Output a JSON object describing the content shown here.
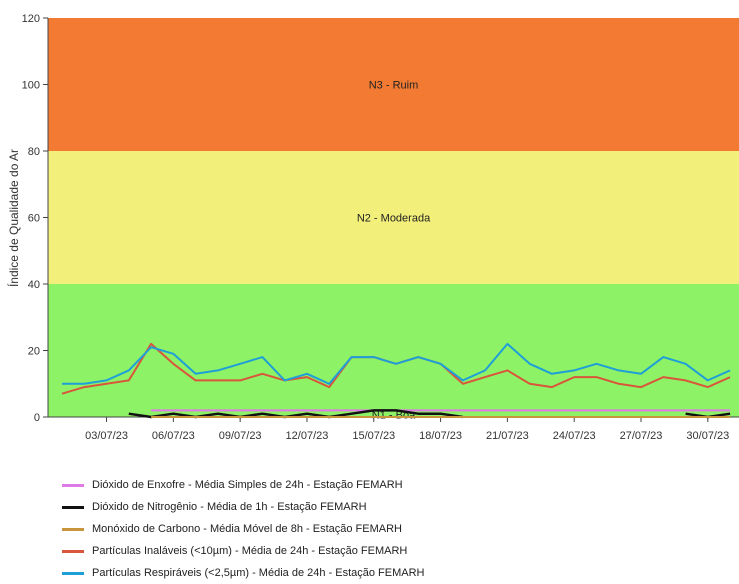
{
  "chart_data": {
    "type": "line",
    "ylabel": "Índice de Qualidade do Ar",
    "ylim": [
      0,
      120
    ],
    "yticks": [
      0,
      20,
      40,
      60,
      80,
      100,
      120
    ],
    "x": [
      "01/07/23",
      "02/07/23",
      "03/07/23",
      "04/07/23",
      "05/07/23",
      "06/07/23",
      "07/07/23",
      "08/07/23",
      "09/07/23",
      "10/07/23",
      "11/07/23",
      "12/07/23",
      "13/07/23",
      "14/07/23",
      "15/07/23",
      "16/07/23",
      "17/07/23",
      "18/07/23",
      "19/07/23",
      "20/07/23",
      "21/07/23",
      "22/07/23",
      "23/07/23",
      "24/07/23",
      "25/07/23",
      "26/07/23",
      "27/07/23",
      "28/07/23",
      "29/07/23",
      "30/07/23",
      "31/07/23"
    ],
    "xtick_labels": [
      "03/07/23",
      "06/07/23",
      "09/07/23",
      "12/07/23",
      "15/07/23",
      "18/07/23",
      "21/07/23",
      "24/07/23",
      "27/07/23",
      "30/07/23"
    ],
    "bands": [
      {
        "label": "N1 - Boa",
        "from": 0,
        "to": 40,
        "color": "#8df265"
      },
      {
        "label": "N2 - Moderada",
        "from": 40,
        "to": 80,
        "color": "#f2ef7a"
      },
      {
        "label": "N3 - Ruim",
        "from": 80,
        "to": 120,
        "color": "#f27a32"
      }
    ],
    "series": [
      {
        "name": "Dióxido de Enxofre - Média Simples de 24h - Estação FEMARH",
        "color": "#e07ae8",
        "values": [
          null,
          null,
          null,
          null,
          2,
          2,
          2,
          2,
          2,
          2,
          2,
          2,
          2,
          2,
          2,
          2,
          2,
          2,
          2,
          2,
          2,
          2,
          2,
          2,
          2,
          2,
          2,
          2,
          2,
          2,
          2
        ]
      },
      {
        "name": "Dióxido de Nitrogênio - Média de 1h - Estação FEMARH",
        "color": "#111111",
        "values": [
          null,
          null,
          null,
          1,
          0,
          1,
          0,
          1,
          0,
          1,
          0,
          1,
          0,
          1,
          2,
          2,
          1,
          1,
          0,
          null,
          null,
          null,
          null,
          null,
          null,
          null,
          null,
          null,
          1,
          0,
          1
        ]
      },
      {
        "name": "Monóxido de Carbono - Média Móvel de 8h - Estação FEMARH",
        "color": "#c8943c",
        "values": [
          null,
          null,
          null,
          null,
          0,
          0,
          0,
          0,
          0,
          0,
          0,
          0,
          0,
          0,
          0,
          0,
          0,
          0,
          0,
          0,
          0,
          0,
          0,
          0,
          0,
          0,
          0,
          0,
          0,
          0,
          0
        ]
      },
      {
        "name": "Partículas Inaláveis (<10µm) - Média de 24h - Estação FEMARH",
        "color": "#d9553b",
        "values": [
          7,
          9,
          10,
          11,
          22,
          16,
          11,
          11,
          11,
          13,
          11,
          12,
          9,
          18,
          18,
          16,
          18,
          16,
          10,
          12,
          14,
          10,
          9,
          12,
          12,
          10,
          9,
          12,
          11,
          9,
          12
        ]
      },
      {
        "name": "Partículas Respiráveis (<2,5µm) - Média de 24h - Estação FEMARH",
        "color": "#1f9fd8",
        "values": [
          10,
          10,
          11,
          14,
          21,
          19,
          13,
          14,
          16,
          18,
          11,
          13,
          10,
          18,
          18,
          16,
          18,
          16,
          11,
          14,
          22,
          16,
          13,
          14,
          16,
          14,
          13,
          18,
          16,
          11,
          14
        ]
      }
    ]
  }
}
